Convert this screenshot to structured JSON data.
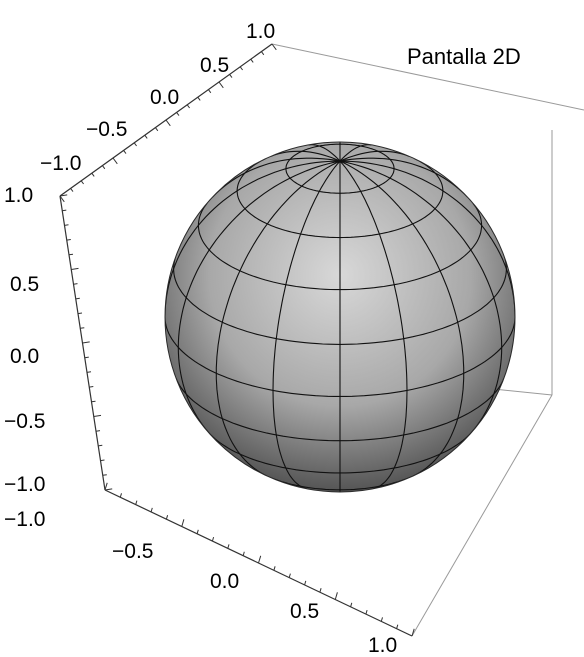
{
  "caption": "Pantalla 2D",
  "chart_data": {
    "type": "surface-3d",
    "surface": "sphere",
    "radius": 1,
    "center": [
      0,
      0,
      0
    ],
    "xlim": [
      -1.0,
      1.0
    ],
    "ylim": [
      -1.0,
      1.0
    ],
    "zlim": [
      -1.0,
      1.0
    ],
    "box": true,
    "mesh_lines": {
      "meridians": 16,
      "parallels": 9
    },
    "axes": {
      "top_axis": {
        "ticks": [
          "1.0",
          "0.5",
          "0.0",
          "−0.5",
          "−1.0"
        ]
      },
      "left_axis": {
        "ticks": [
          "1.0",
          "0.5",
          "0.0",
          "−0.5",
          "−1.0"
        ]
      },
      "bottom_axis": {
        "ticks": [
          "−1.0",
          "−0.5",
          "0.0",
          "0.5",
          "1.0"
        ]
      }
    },
    "colors": {
      "surface_light": "#d4d4d4",
      "surface_dark": "#3c3c3c",
      "mesh": "#111111",
      "box": "#9a9a9a",
      "axis": "#333333"
    }
  }
}
